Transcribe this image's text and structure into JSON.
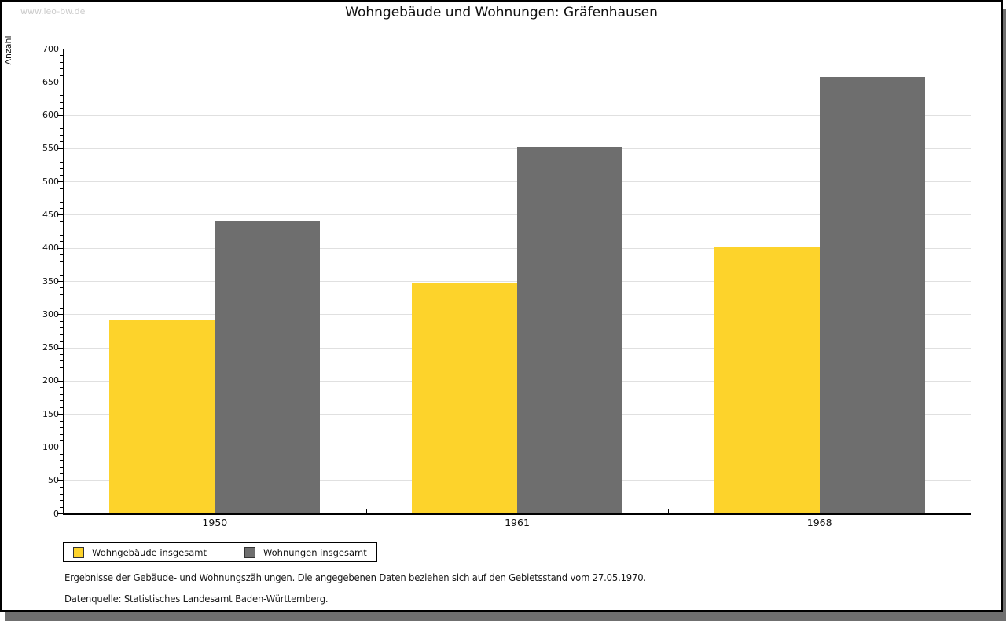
{
  "watermark": "www.leo-bw.de",
  "title": "Wohngebäude und Wohnungen: Gräfenhausen",
  "chart_data": {
    "type": "bar",
    "title": "Wohngebäude und Wohnungen: Gräfenhausen",
    "xlabel": "",
    "ylabel": "Anzahl",
    "categories": [
      "1950",
      "1961",
      "1968"
    ],
    "series": [
      {
        "name": "Wohngebäude insgesamt",
        "color": "#fdd32b",
        "values": [
          292,
          346,
          401
        ]
      },
      {
        "name": "Wohnungen insgesamt",
        "color": "#6e6e6e",
        "values": [
          441,
          552,
          658
        ]
      }
    ],
    "ylim": [
      0,
      700
    ],
    "ytick_step": 50,
    "minor_tick_step": 10,
    "grid": true,
    "legend_position": "bottom-left"
  },
  "footnotes": {
    "line1": "Ergebnisse der Gebäude- und Wohnungszählungen. Die angegebenen Daten beziehen sich auf den Gebietsstand vom 27.05.1970.",
    "line2": "Datenquelle: Statistisches Landesamt Baden-Württemberg."
  },
  "colors": {
    "bar_yellow": "#fdd32b",
    "bar_gray": "#6e6e6e",
    "gridline": "#e0e0e0",
    "shadow": "#6f6f6f",
    "watermark": "#cccccc"
  }
}
